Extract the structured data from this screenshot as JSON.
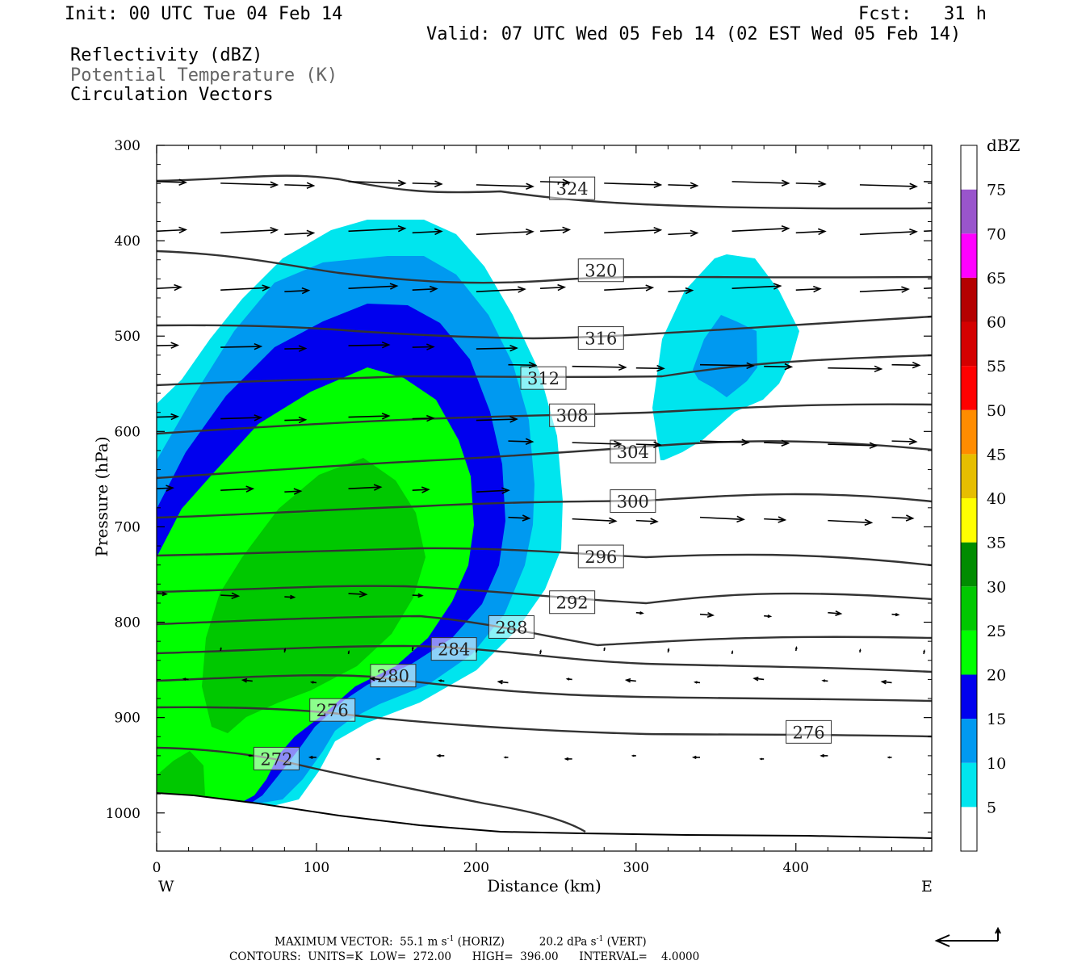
{
  "header": {
    "init": "Init: 00 UTC Tue 04 Feb 14",
    "fcst": "Fcst:   31 h",
    "valid": "Valid: 07 UTC Wed 05 Feb 14 (02 EST Wed 05 Feb 14)",
    "fields": [
      "Reflectivity (dBZ)",
      "Potential Temperature (K)",
      "Circulation Vectors"
    ]
  },
  "chart_data": {
    "type": "contour",
    "xlabel": "Distance (km)",
    "ylabel": "Pressure (hPa)",
    "xlim": [
      0,
      485
    ],
    "ylim": [
      300,
      1040
    ],
    "y_inverted": true,
    "x_ticks": [
      0,
      100,
      200,
      300,
      400
    ],
    "y_ticks": [
      300,
      400,
      500,
      600,
      700,
      800,
      900,
      1000
    ],
    "x_end_labels": {
      "left": "W",
      "right": "E"
    },
    "colorbar": {
      "unit": "dBZ",
      "levels": [
        5,
        10,
        15,
        20,
        25,
        30,
        35,
        40,
        45,
        50,
        55,
        60,
        65,
        70,
        75
      ],
      "colors": [
        "#ffffff",
        "#00e5ee",
        "#0099f0",
        "#0000ee",
        "#00ff00",
        "#00c800",
        "#008c00",
        "#ffff00",
        "#e6be00",
        "#ff8c00",
        "#ff0000",
        "#d40000",
        "#b40000",
        "#ff00ff",
        "#9955cc"
      ]
    },
    "reflectivity_cells": [
      {
        "name": "main-cell",
        "levels_dbz": [
          5,
          10,
          15,
          20,
          25,
          30
        ],
        "approx_center_km": 130,
        "approx_center_hpa": 720
      },
      {
        "name": "eastern-cell",
        "levels_dbz": [
          5,
          10
        ],
        "approx_center_km": 355,
        "approx_center_hpa": 520
      }
    ],
    "theta_contours": {
      "units": "K",
      "low": 272.0,
      "high": 396.0,
      "interval": 4.0,
      "labels": [
        {
          "value": "324",
          "x": 260,
          "y": 345
        },
        {
          "value": "320",
          "x": 278,
          "y": 431
        },
        {
          "value": "316",
          "x": 278,
          "y": 502
        },
        {
          "value": "312",
          "x": 242,
          "y": 544
        },
        {
          "value": "308",
          "x": 260,
          "y": 583
        },
        {
          "value": "304",
          "x": 298,
          "y": 621
        },
        {
          "value": "300",
          "x": 298,
          "y": 673
        },
        {
          "value": "296",
          "x": 278,
          "y": 731
        },
        {
          "value": "292",
          "x": 260,
          "y": 779
        },
        {
          "value": "288",
          "x": 222,
          "y": 805
        },
        {
          "value": "284",
          "x": 186,
          "y": 828
        },
        {
          "value": "280",
          "x": 148,
          "y": 856
        },
        {
          "value": "276",
          "x": 110,
          "y": 892
        },
        {
          "value": "272",
          "x": 75,
          "y": 943
        },
        {
          "value": "276",
          "x": 408,
          "y": 915
        }
      ]
    },
    "vector_rows_hpa": [
      338,
      390,
      450,
      510,
      530,
      585,
      610,
      660,
      690,
      770,
      790,
      830,
      860,
      940
    ]
  },
  "footer": {
    "max_vector_label": "MAXIMUM VECTOR:",
    "max_vector_horiz": "55.1 m s",
    "horiz_tag": "(HORIZ)",
    "max_vector_vert": "20.2 dPa s",
    "vert_tag": "(VERT)",
    "exp": "-1",
    "contours_line": "CONTOURS:  UNITS=K  LOW=  272.00      HIGH=  396.00      INTERVAL=    4.0000"
  }
}
